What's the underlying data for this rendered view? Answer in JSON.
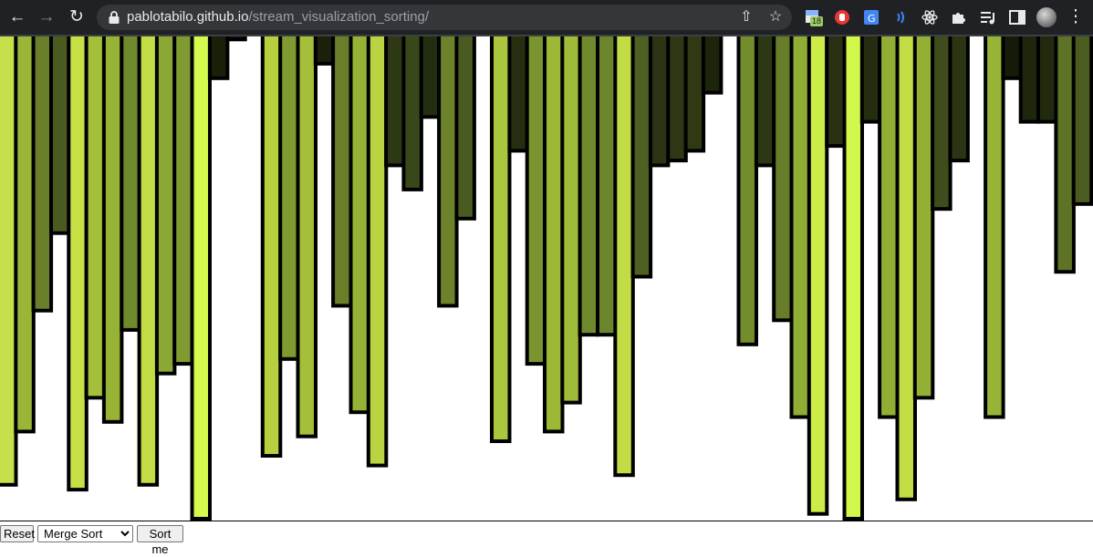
{
  "browser": {
    "url_host": "pablotabilo.github.io",
    "url_path": "/stream_visualization_sorting/",
    "extension_badge": "18"
  },
  "controls": {
    "reset_label": "Reset",
    "algorithm_options": [
      "Merge Sort"
    ],
    "algorithm_selected": "Merge Sort",
    "sort_label": "Sort me"
  },
  "visualization": {
    "bar_stroke_color": "#000000",
    "bars": [
      {
        "value": 0.93,
        "color": "#c4e04a"
      },
      {
        "value": 0.82,
        "color": "#9bb538"
      },
      {
        "value": 0.57,
        "color": "#6b7e2a"
      },
      {
        "value": 0.41,
        "color": "#4a5a20"
      },
      {
        "value": 0.94,
        "color": "#c6e046"
      },
      {
        "value": 0.75,
        "color": "#a4c03a"
      },
      {
        "value": 0.8,
        "color": "#97b336"
      },
      {
        "value": 0.61,
        "color": "#6f8a2c"
      },
      {
        "value": 0.93,
        "color": "#c1dc45"
      },
      {
        "value": 0.7,
        "color": "#8ba834"
      },
      {
        "value": 0.68,
        "color": "#7e9a30"
      },
      {
        "value": 1.0,
        "color": "#d4fa50"
      },
      {
        "value": 0.09,
        "color": "#18200a"
      },
      {
        "value": 0.01,
        "color": "#0e1206"
      },
      {
        "value": 0.0,
        "color": "#ffffff"
      },
      {
        "value": 0.87,
        "color": "#b6d040"
      },
      {
        "value": 0.67,
        "color": "#7f9a30"
      },
      {
        "value": 0.83,
        "color": "#a4c03a"
      },
      {
        "value": 0.06,
        "color": "#1a200a"
      },
      {
        "value": 0.56,
        "color": "#6a7e2a"
      },
      {
        "value": 0.78,
        "color": "#96b236"
      },
      {
        "value": 0.89,
        "color": "#b9d442"
      },
      {
        "value": 0.27,
        "color": "#2d3914"
      },
      {
        "value": 0.32,
        "color": "#384818"
      },
      {
        "value": 0.17,
        "color": "#232d10"
      },
      {
        "value": 0.56,
        "color": "#6c822b"
      },
      {
        "value": 0.38,
        "color": "#4a5b21"
      },
      {
        "value": 0.0,
        "color": "#ffffff"
      },
      {
        "value": 0.84,
        "color": "#aac63c"
      },
      {
        "value": 0.24,
        "color": "#252f10"
      },
      {
        "value": 0.68,
        "color": "#7a952f"
      },
      {
        "value": 0.82,
        "color": "#9db837"
      },
      {
        "value": 0.76,
        "color": "#a0bb39"
      },
      {
        "value": 0.62,
        "color": "#6f8a2c"
      },
      {
        "value": 0.62,
        "color": "#6a852b"
      },
      {
        "value": 0.91,
        "color": "#c1dc45"
      },
      {
        "value": 0.5,
        "color": "#4e6022"
      },
      {
        "value": 0.27,
        "color": "#2a3413"
      },
      {
        "value": 0.26,
        "color": "#2e3814"
      },
      {
        "value": 0.24,
        "color": "#2f3a14"
      },
      {
        "value": 0.12,
        "color": "#1d240c"
      },
      {
        "value": 0.0,
        "color": "#ffffff"
      },
      {
        "value": 0.64,
        "color": "#738d2d"
      },
      {
        "value": 0.27,
        "color": "#2c3713"
      },
      {
        "value": 0.59,
        "color": "#677d29"
      },
      {
        "value": 0.79,
        "color": "#8fad34"
      },
      {
        "value": 0.99,
        "color": "#ccec48"
      },
      {
        "value": 0.23,
        "color": "#283212"
      },
      {
        "value": 1.0,
        "color": "#d2f84c"
      },
      {
        "value": 0.18,
        "color": "#242d10"
      },
      {
        "value": 0.79,
        "color": "#92af35"
      },
      {
        "value": 0.96,
        "color": "#c2dd45"
      },
      {
        "value": 0.75,
        "color": "#93b035"
      },
      {
        "value": 0.36,
        "color": "#3e4d1b"
      },
      {
        "value": 0.26,
        "color": "#2b3513"
      },
      {
        "value": 0.0,
        "color": "#ffffff"
      },
      {
        "value": 0.79,
        "color": "#98b437"
      },
      {
        "value": 0.09,
        "color": "#151b08"
      },
      {
        "value": 0.18,
        "color": "#1e260c"
      },
      {
        "value": 0.18,
        "color": "#212a0e"
      },
      {
        "value": 0.49,
        "color": "#5e7326"
      },
      {
        "value": 0.35,
        "color": "#4b5c21"
      }
    ]
  }
}
